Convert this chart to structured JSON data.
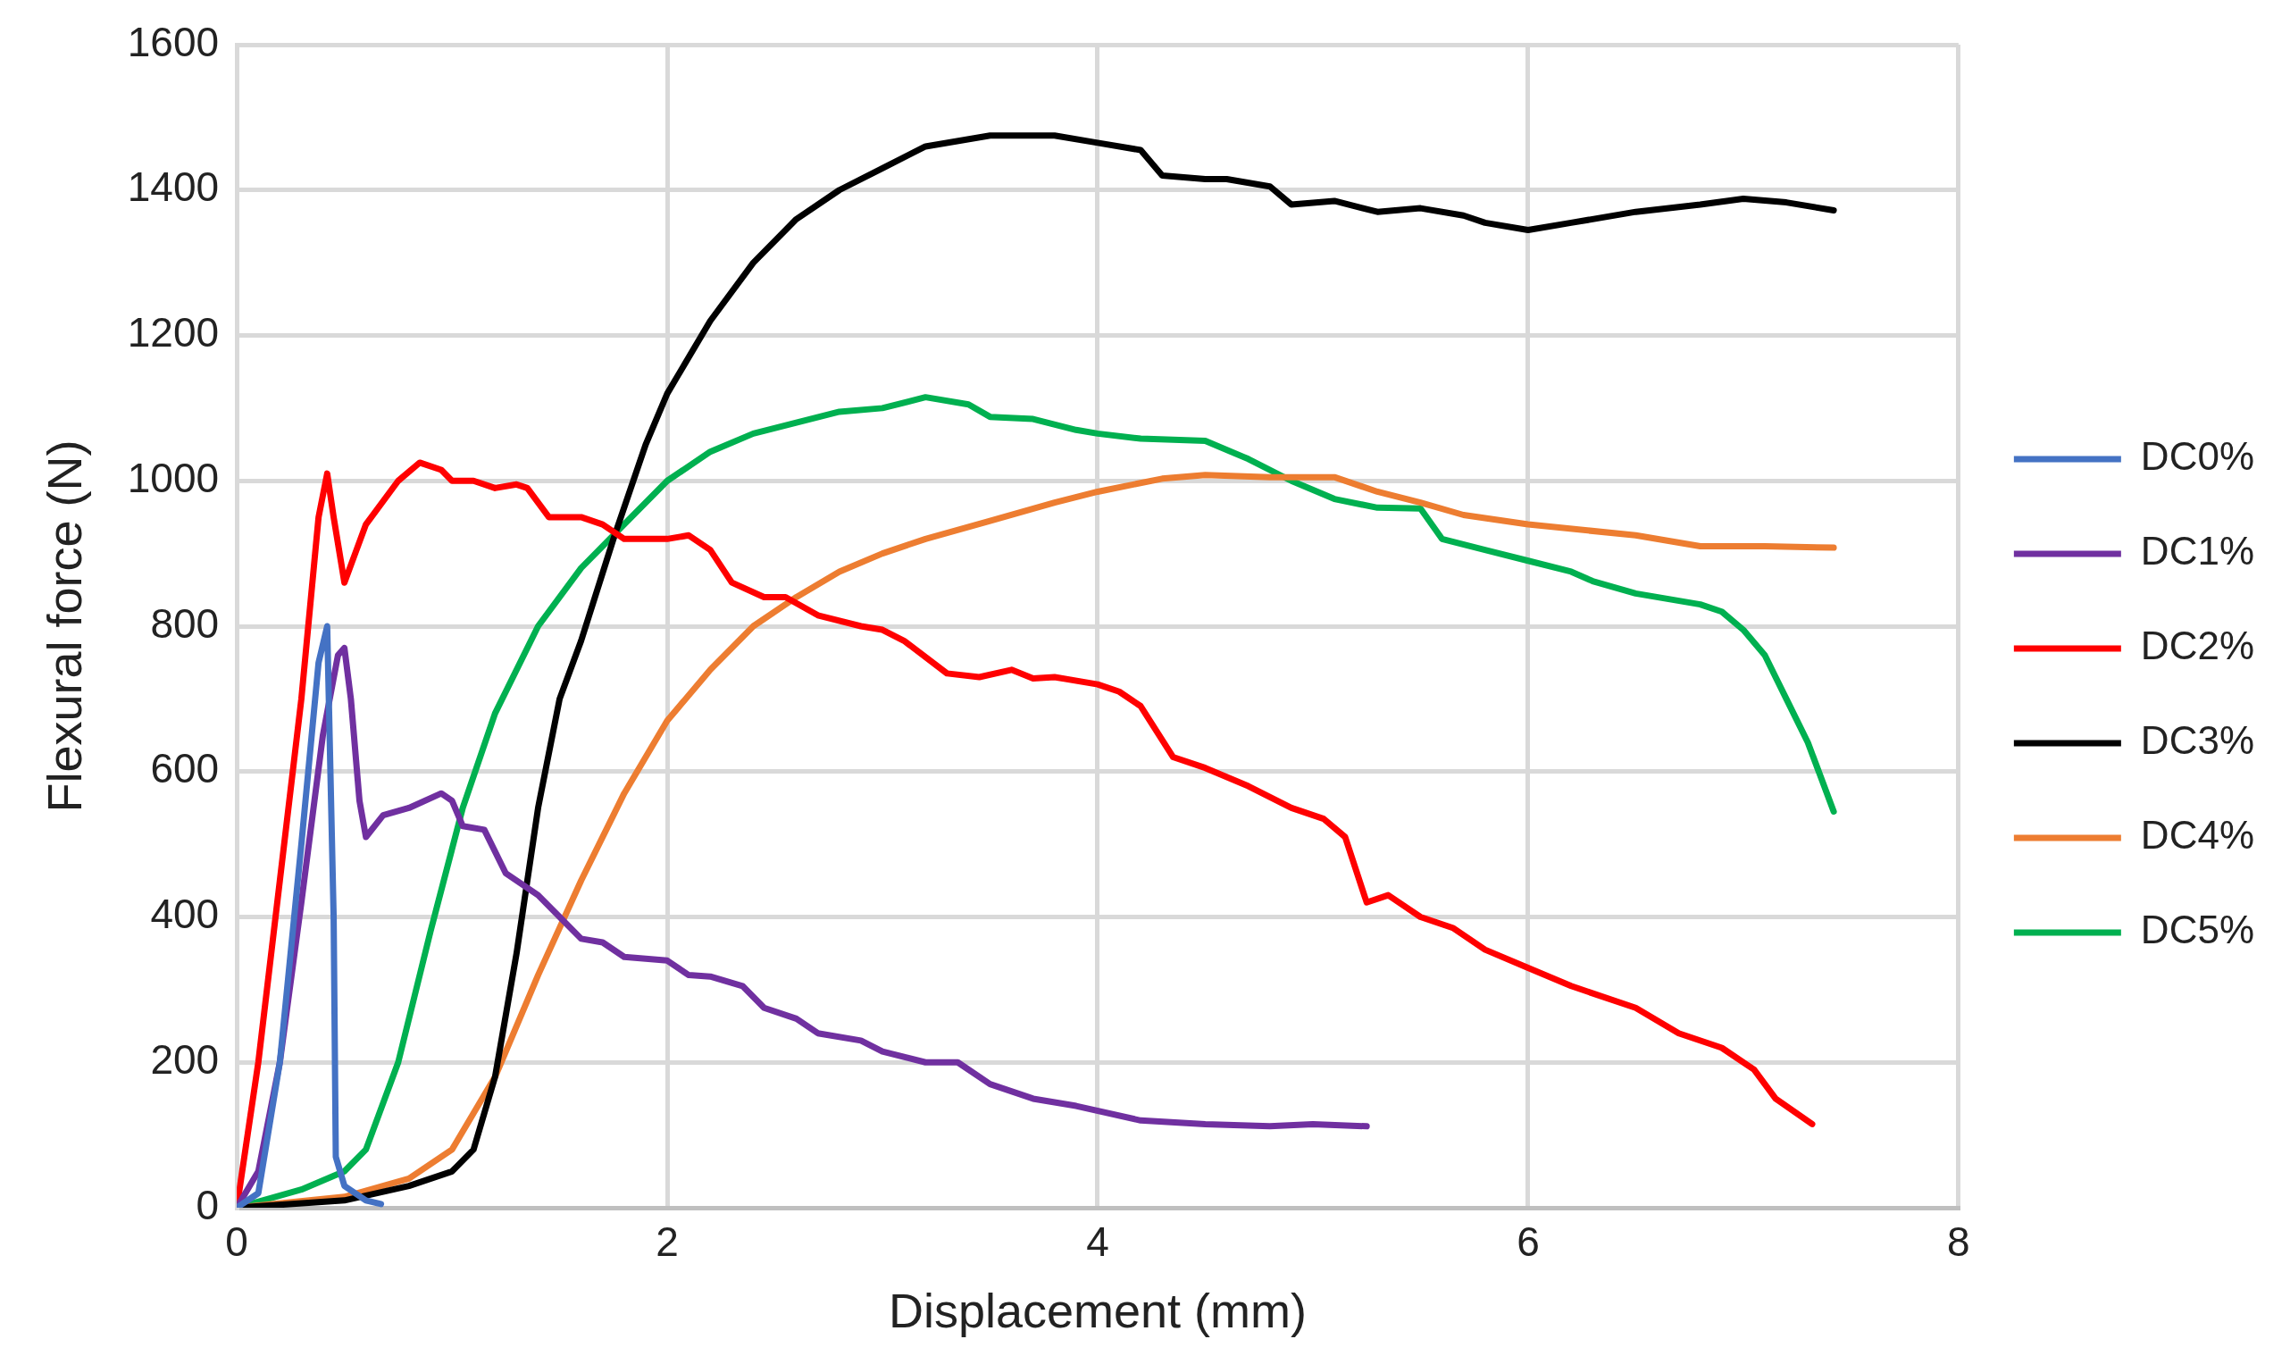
{
  "chart_data": {
    "type": "line",
    "xlabel": "Displacement (mm)",
    "ylabel": "Flexural force (N)",
    "xlim": [
      0,
      8
    ],
    "xticks": [
      0,
      2,
      4,
      6,
      8
    ],
    "ylim": [
      0,
      1600
    ],
    "yticks": [
      0,
      200,
      400,
      600,
      800,
      1000,
      1200,
      1400,
      1600
    ],
    "grid": true,
    "legend": "right",
    "marker": "none",
    "line_style": "solid",
    "series": [
      {
        "name": "DC0%",
        "color": "#4472c4",
        "x": [
          0,
          0.1,
          0.2,
          0.3,
          0.38,
          0.42,
          0.45,
          0.46,
          0.5,
          0.6,
          0.67
        ],
        "values": [
          0,
          20,
          200,
          500,
          750,
          800,
          400,
          70,
          30,
          10,
          5
        ]
      },
      {
        "name": "DC1%",
        "color": "#7030a0",
        "x": [
          0,
          0.1,
          0.2,
          0.3,
          0.4,
          0.47,
          0.5,
          0.53,
          0.57,
          0.6,
          0.68,
          0.8,
          0.95,
          1.0,
          1.05,
          1.15,
          1.25,
          1.4,
          1.5,
          1.6,
          1.7,
          1.8,
          2.0,
          2.1,
          2.2,
          2.35,
          2.45,
          2.6,
          2.7,
          2.9,
          3.0,
          3.2,
          3.35,
          3.5,
          3.7,
          3.9,
          4.2,
          4.5,
          4.8,
          5.0,
          5.25
        ],
        "values": [
          0,
          50,
          200,
          420,
          650,
          760,
          770,
          700,
          560,
          510,
          540,
          550,
          570,
          560,
          525,
          520,
          460,
          430,
          400,
          370,
          365,
          345,
          340,
          320,
          318,
          305,
          275,
          260,
          240,
          230,
          215,
          200,
          200,
          170,
          150,
          140,
          120,
          115,
          112,
          115,
          112
        ]
      },
      {
        "name": "DC2%",
        "color": "#ff0000",
        "x": [
          0,
          0.1,
          0.2,
          0.3,
          0.38,
          0.42,
          0.45,
          0.5,
          0.55,
          0.6,
          0.75,
          0.85,
          0.95,
          1.0,
          1.1,
          1.2,
          1.3,
          1.35,
          1.45,
          1.6,
          1.7,
          1.8,
          2.0,
          2.1,
          2.2,
          2.3,
          2.45,
          2.55,
          2.7,
          2.9,
          3.0,
          3.1,
          3.3,
          3.45,
          3.6,
          3.7,
          3.8,
          4.0,
          4.1,
          4.2,
          4.35,
          4.5,
          4.7,
          4.9,
          5.05,
          5.15,
          5.25,
          5.35,
          5.5,
          5.65,
          5.8,
          6.0,
          6.2,
          6.5,
          6.7,
          6.9,
          7.05,
          7.15,
          7.32
        ],
        "values": [
          0,
          200,
          450,
          700,
          950,
          1010,
          950,
          860,
          900,
          940,
          1000,
          1025,
          1015,
          1000,
          1000,
          990,
          995,
          990,
          950,
          950,
          940,
          920,
          920,
          925,
          905,
          860,
          840,
          840,
          815,
          800,
          795,
          780,
          735,
          730,
          740,
          728,
          730,
          720,
          710,
          690,
          620,
          605,
          580,
          550,
          535,
          510,
          420,
          430,
          400,
          385,
          355,
          330,
          305,
          275,
          240,
          220,
          190,
          150,
          115
        ]
      },
      {
        "name": "DC3%",
        "color": "#000000",
        "x": [
          0,
          0.5,
          0.8,
          1.0,
          1.1,
          1.2,
          1.3,
          1.4,
          1.5,
          1.6,
          1.75,
          1.9,
          2.0,
          2.2,
          2.4,
          2.6,
          2.8,
          3.0,
          3.2,
          3.5,
          3.8,
          4.0,
          4.2,
          4.3,
          4.5,
          4.6,
          4.8,
          4.9,
          5.1,
          5.3,
          5.5,
          5.7,
          5.8,
          6.0,
          6.2,
          6.5,
          6.8,
          7.0,
          7.2,
          7.42
        ],
        "values": [
          0,
          10,
          30,
          50,
          80,
          180,
          350,
          550,
          700,
          780,
          920,
          1050,
          1120,
          1220,
          1300,
          1360,
          1400,
          1430,
          1460,
          1475,
          1475,
          1465,
          1455,
          1420,
          1415,
          1415,
          1405,
          1380,
          1385,
          1370,
          1375,
          1365,
          1355,
          1345,
          1355,
          1370,
          1380,
          1388,
          1383,
          1372
        ]
      },
      {
        "name": "DC4%",
        "color": "#ed7d31",
        "x": [
          0,
          0.5,
          0.8,
          1.0,
          1.2,
          1.4,
          1.6,
          1.8,
          2.0,
          2.2,
          2.4,
          2.6,
          2.8,
          3.0,
          3.2,
          3.5,
          3.8,
          4.0,
          4.3,
          4.5,
          4.8,
          5.1,
          5.3,
          5.5,
          5.7,
          6.0,
          6.5,
          6.8,
          7.1,
          7.42
        ],
        "values": [
          0,
          15,
          40,
          80,
          180,
          320,
          450,
          570,
          670,
          740,
          800,
          840,
          875,
          900,
          920,
          945,
          970,
          985,
          1003,
          1008,
          1005,
          1005,
          985,
          970,
          953,
          940,
          925,
          910,
          910,
          908
        ]
      },
      {
        "name": "DC5%",
        "color": "#00b050",
        "x": [
          0,
          0.3,
          0.5,
          0.6,
          0.75,
          0.9,
          1.05,
          1.2,
          1.4,
          1.6,
          1.8,
          2.0,
          2.2,
          2.4,
          2.6,
          2.8,
          3.0,
          3.2,
          3.4,
          3.5,
          3.7,
          3.9,
          4.0,
          4.2,
          4.5,
          4.7,
          4.9,
          5.1,
          5.3,
          5.5,
          5.6,
          5.8,
          6.0,
          6.2,
          6.3,
          6.5,
          6.8,
          6.9,
          7.0,
          7.1,
          7.2,
          7.3,
          7.42
        ],
        "values": [
          0,
          25,
          50,
          80,
          200,
          380,
          550,
          680,
          800,
          880,
          940,
          1000,
          1040,
          1065,
          1080,
          1095,
          1100,
          1115,
          1105,
          1088,
          1085,
          1070,
          1065,
          1058,
          1055,
          1030,
          1000,
          975,
          963,
          962,
          920,
          905,
          890,
          875,
          862,
          845,
          830,
          820,
          795,
          760,
          700,
          640,
          545
        ]
      }
    ]
  }
}
